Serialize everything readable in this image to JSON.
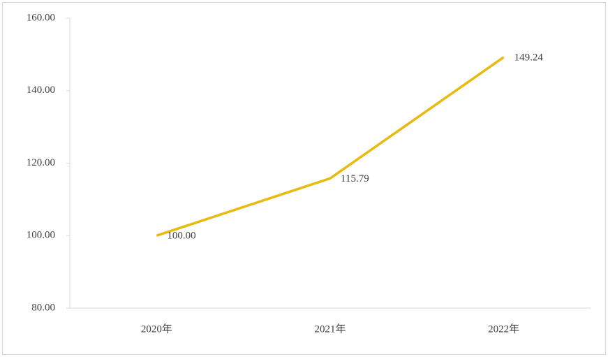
{
  "chart_data": {
    "type": "line",
    "categories": [
      "2020年",
      "2021年",
      "2022年"
    ],
    "series": [
      {
        "color": "#e8b90e",
        "values": [
          100,
          115.79,
          149.24
        ],
        "value_labels": [
          "100.00",
          "115.79",
          "149.24"
        ]
      }
    ],
    "ylim": [
      80,
      160
    ],
    "yticks": [
      {
        "value": 80,
        "label": "80.00"
      },
      {
        "value": 100,
        "label": "100.00"
      },
      {
        "value": 120,
        "label": "120.00"
      },
      {
        "value": 140,
        "label": "140.00"
      },
      {
        "value": 160,
        "label": "160.00"
      }
    ]
  }
}
